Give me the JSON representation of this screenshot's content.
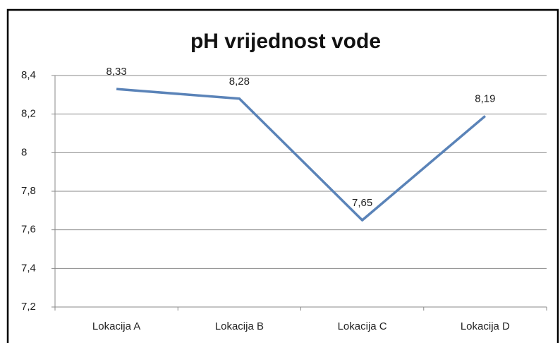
{
  "chart_data": {
    "type": "line",
    "title": "pH vrijednost vode",
    "categories": [
      "Lokacija A",
      "Lokacija B",
      "Lokacija C",
      "Lokacija D"
    ],
    "series": [
      {
        "name": "pH",
        "color": "#5a83b8",
        "values": [
          8.33,
          8.28,
          7.65,
          8.19
        ],
        "value_labels": [
          "8,33",
          "8,28",
          "7,65",
          "8,19"
        ]
      }
    ],
    "ylim": [
      7.2,
      8.4
    ],
    "yticks": [
      {
        "value": 7.2,
        "label": "7,2"
      },
      {
        "value": 7.4,
        "label": "7,4"
      },
      {
        "value": 7.6,
        "label": "7,6"
      },
      {
        "value": 7.8,
        "label": "7,8"
      },
      8,
      {
        "value": 8.2,
        "label": "8,2"
      },
      {
        "value": 8.4,
        "label": "8,4"
      }
    ],
    "grid": true
  }
}
